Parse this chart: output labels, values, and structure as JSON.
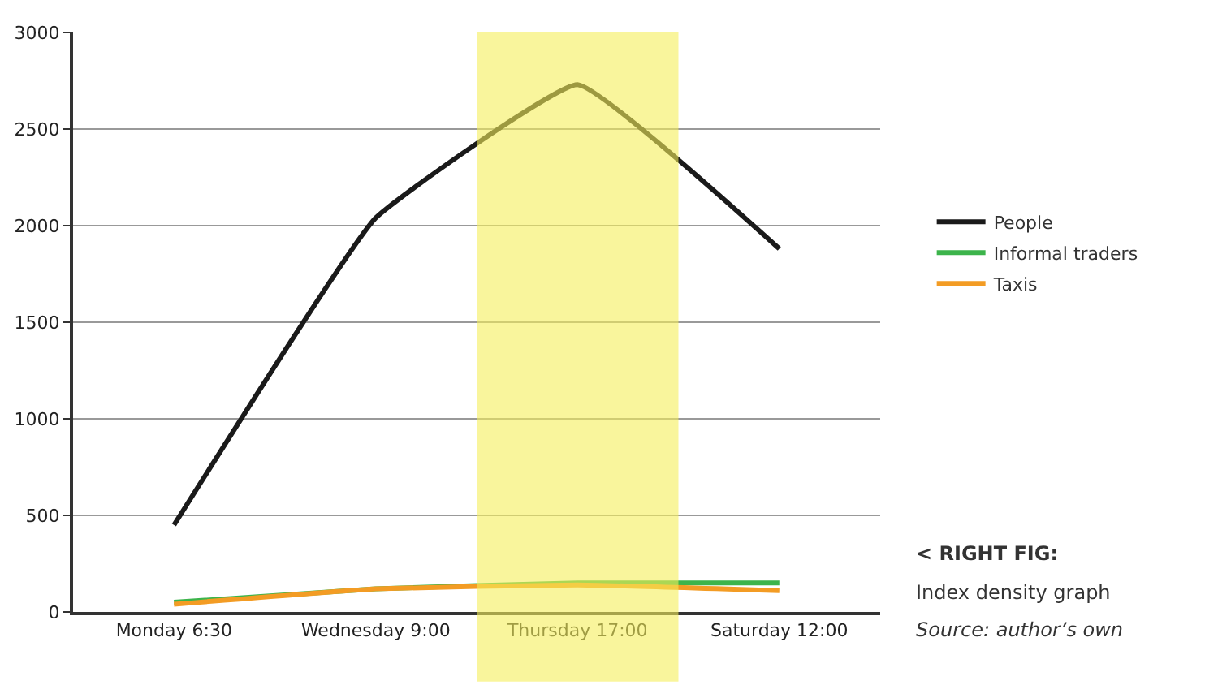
{
  "chart_data": {
    "type": "line",
    "categories": [
      "Monday 6:30",
      "Wednesday 9:00",
      "Thursday 17:00",
      "Saturday 12:00"
    ],
    "series": [
      {
        "name": "People",
        "color": "#1a1a1a",
        "values": [
          450,
          2040,
          2730,
          1880
        ]
      },
      {
        "name": "Informal traders",
        "color": "#3cb44b",
        "values": [
          50,
          120,
          150,
          150
        ]
      },
      {
        "name": "Taxis",
        "color": "#f39c24",
        "values": [
          40,
          120,
          140,
          110
        ]
      }
    ],
    "ylim": [
      0,
      3000
    ],
    "yticks": [
      0,
      500,
      1000,
      1500,
      2000,
      2500,
      3000
    ],
    "grid": "y",
    "legend": "right",
    "marker": "none",
    "line_style": "solid",
    "bands": [
      {
        "axis": "x",
        "from": "Thursday 17:00",
        "to": "Thursday 17:00",
        "color": "#f5ee5a"
      }
    ],
    "annotations": [
      "< RIGHT FIG:",
      "Index density graph",
      "Source: author’s own"
    ]
  }
}
